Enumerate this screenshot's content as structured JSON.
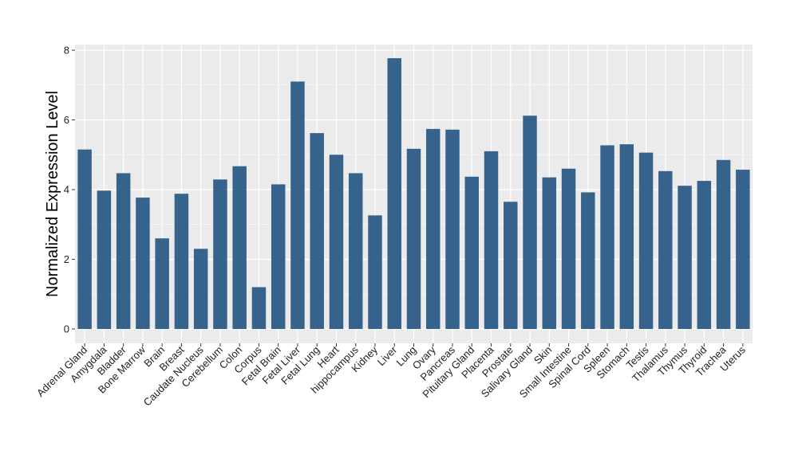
{
  "chart_data": {
    "type": "bar",
    "title": "",
    "xlabel": "",
    "ylabel": "Normalized Expression Level",
    "ylim": [
      0,
      8.2
    ],
    "yticks": [
      0,
      2,
      4,
      6,
      8
    ],
    "grid": true,
    "legend": "none",
    "colors": {
      "bar": "#36638B",
      "panel_bg": "#EBEBEB",
      "grid": "#FFFFFF",
      "axis_tick": "#333333"
    },
    "categories": [
      "Adrenal Gland",
      "Amygdala",
      "Bladder",
      "Bone Marrow",
      "Brain",
      "Breast",
      "Caudate Nucleus",
      "Cerebellum",
      "Colon",
      "Corpus",
      "Fetal Brain",
      "Fetal Liver",
      "Fetal Lung",
      "Heart",
      "hippocampus",
      "Kidney",
      "Liver",
      "Lung",
      "Ovary",
      "Pancreas",
      "Pituitary Gland",
      "Placenta",
      "Prostate",
      "Salivary Gland",
      "Skin",
      "Small Intestine",
      "Spinal Cord",
      "Spleen",
      "Stomach",
      "Testis",
      "Thalamus",
      "Thymus",
      "Thyroid",
      "Trachea",
      "Uterus"
    ],
    "values": [
      5.15,
      3.97,
      4.47,
      3.77,
      2.6,
      3.88,
      2.3,
      4.29,
      4.67,
      1.2,
      4.15,
      7.1,
      5.62,
      5.0,
      4.47,
      3.26,
      7.77,
      5.17,
      5.74,
      5.72,
      4.37,
      5.1,
      3.65,
      6.12,
      4.35,
      4.6,
      3.92,
      5.27,
      5.3,
      5.06,
      4.53,
      4.11,
      4.25,
      4.85,
      4.57
    ]
  }
}
